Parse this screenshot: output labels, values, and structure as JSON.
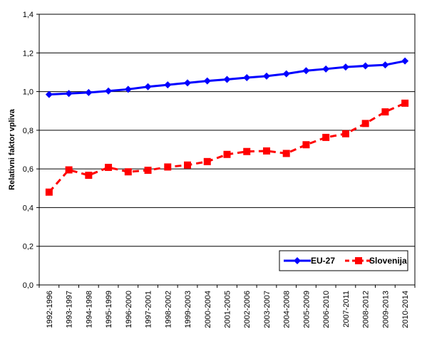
{
  "chart_data": {
    "type": "line",
    "title": "",
    "xlabel": "",
    "ylabel": "Relativni faktor vpliva",
    "ylim": [
      0,
      1.4
    ],
    "yticks": [
      "0,0",
      "0,2",
      "0,4",
      "0,6",
      "0,8",
      "1,0",
      "1,2",
      "1,4"
    ],
    "grid": true,
    "legend_position": "bottom-right",
    "categories": [
      "1992-1996",
      "1993-1997",
      "1994-1998",
      "1995-1999",
      "1996-2000",
      "1997-2001",
      "1998-2002",
      "1999-2003",
      "2000-2004",
      "2001-2005",
      "2002-2006",
      "2003-2007",
      "2004-2008",
      "2005-2009",
      "2006-2010",
      "2007-2011",
      "2008-2012",
      "2009-2013",
      "2010-2014"
    ],
    "series": [
      {
        "name": "EU-27",
        "color": "#0000FF",
        "marker": "diamond",
        "line_style": "solid",
        "values": [
          0.985,
          0.99,
          0.995,
          1.003,
          1.012,
          1.025,
          1.035,
          1.045,
          1.055,
          1.063,
          1.072,
          1.08,
          1.092,
          1.108,
          1.117,
          1.127,
          1.133,
          1.138,
          1.158
        ]
      },
      {
        "name": "Slovenija",
        "color": "#FF0000",
        "marker": "square",
        "line_style": "dashed",
        "values": [
          0.48,
          0.595,
          0.567,
          0.608,
          0.585,
          0.593,
          0.61,
          0.62,
          0.638,
          0.675,
          0.69,
          0.693,
          0.68,
          0.725,
          0.763,
          0.782,
          0.835,
          0.895,
          0.94
        ]
      }
    ]
  }
}
